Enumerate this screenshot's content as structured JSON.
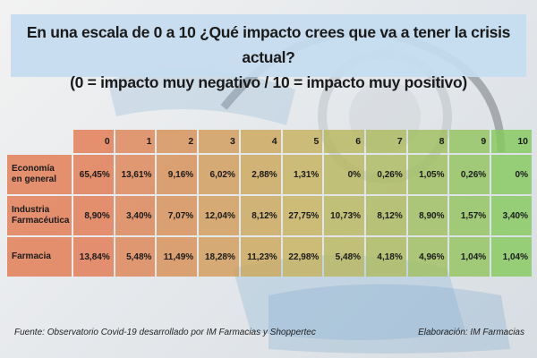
{
  "title": {
    "line1": "En una escala de 0 a 10 ¿Qué impacto crees que va a tener la crisis actual?",
    "line2": "(0 = impacto muy negativo / 10 = impacto muy positivo)"
  },
  "chart_data": {
    "type": "table",
    "columns": [
      "0",
      "1",
      "2",
      "3",
      "4",
      "5",
      "6",
      "7",
      "8",
      "9",
      "10"
    ],
    "rows": [
      {
        "label": [
          "Economía",
          "en general"
        ],
        "values": [
          "65,45%",
          "13,61%",
          "9,16%",
          "6,02%",
          "2,88%",
          "1,31%",
          "0%",
          "0,26%",
          "1,05%",
          "0,26%",
          "0%"
        ]
      },
      {
        "label": [
          "Industria",
          "Farmacéutica"
        ],
        "values": [
          "8,90%",
          "3,40%",
          "7,07%",
          "12,04%",
          "8,12%",
          "27,75%",
          "10,73%",
          "8,12%",
          "8,90%",
          "1,57%",
          "3,40%"
        ]
      },
      {
        "label": [
          "Farmacia"
        ],
        "values": [
          "13,84%",
          "5,48%",
          "11,49%",
          "18,28%",
          "11,23%",
          "22,98%",
          "5,48%",
          "4,18%",
          "4,96%",
          "1,04%",
          "1,04%"
        ]
      }
    ],
    "gradient": {
      "start": "#e27a52",
      "mid": "#c7b25f",
      "end": "#86c95f"
    }
  },
  "footer": {
    "source": "Fuente: Observatorio Covid-19 desarrollado por IM Farmacias y Shoppertec",
    "credit": "Elaboración: IM Farmacias"
  }
}
